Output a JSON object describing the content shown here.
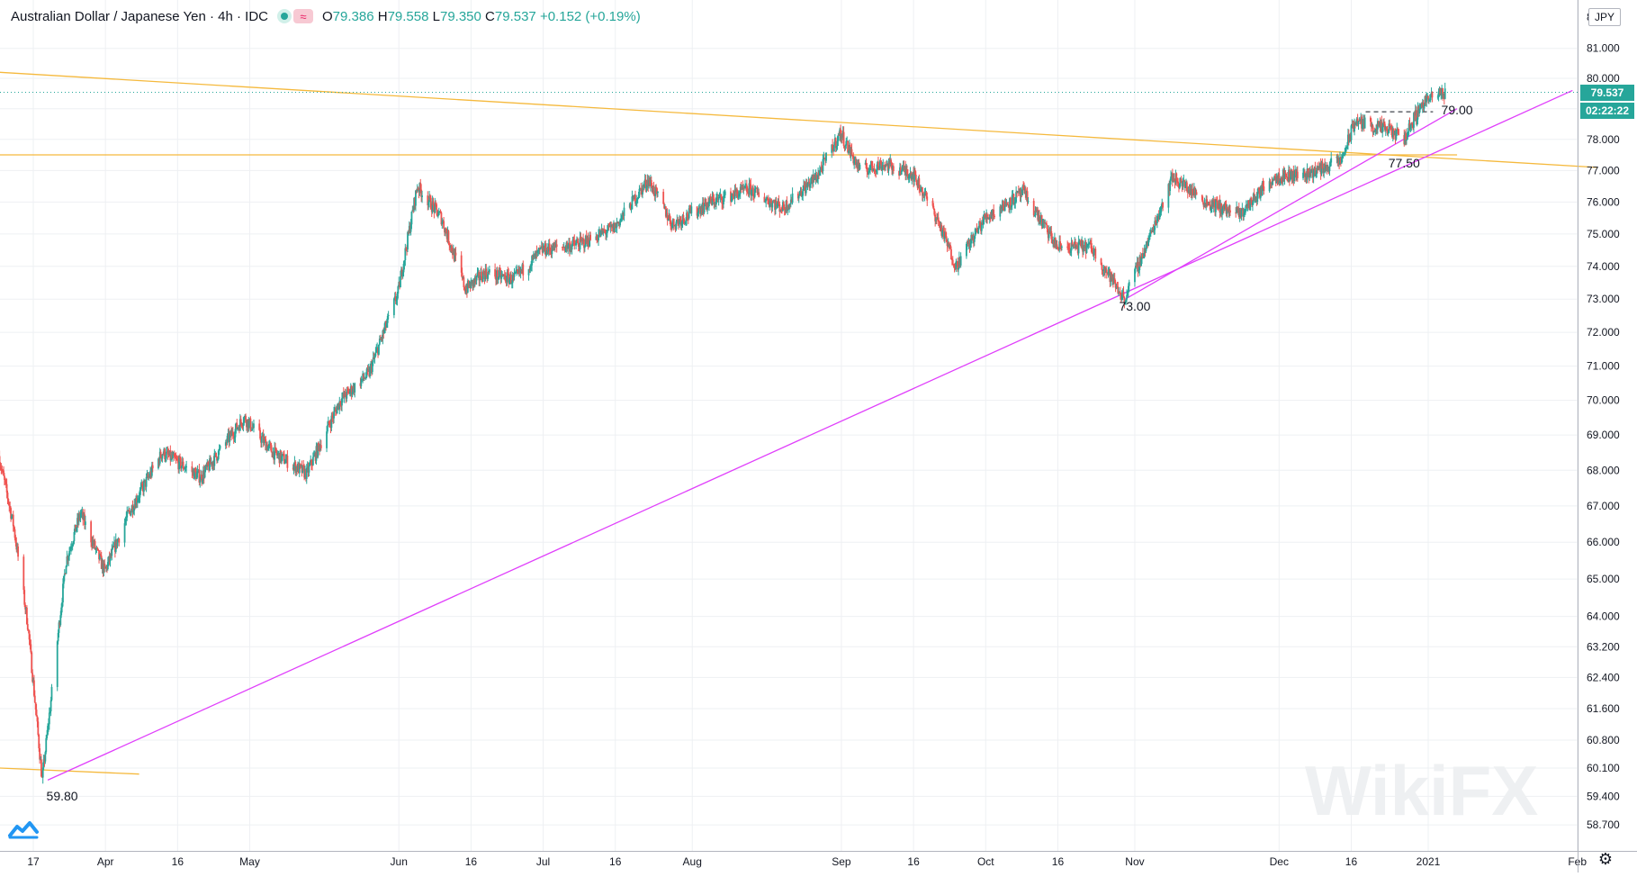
{
  "legend": {
    "symbol": "Australian Dollar / Japanese Yen · 4h · IDC",
    "approx": "≈",
    "open_label": "O",
    "open": "79.386",
    "high_label": "H",
    "high": "79.558",
    "low_label": "L",
    "low": "79.350",
    "close_label": "C",
    "close": "79.537",
    "change": "+0.152 (+0.19%)"
  },
  "currency": "JPY",
  "last_price_tag": "79.537",
  "countdown_tag": "02:22:22",
  "colors": {
    "up": "#26a69a",
    "down": "#ef5350",
    "support": "#e040fb",
    "resistance": "#f5b93d",
    "grid": "#eef0f3"
  },
  "chart_data": {
    "type": "candlestick",
    "symbol": "Australian Dollar / Japanese Yen",
    "timeframe": "4h",
    "y_axis": {
      "ticks": [
        "81.000",
        "80.000",
        "79.000",
        "78.000",
        "77.000",
        "76.000",
        "75.000",
        "74.000",
        "73.000",
        "72.000",
        "71.000",
        "70.000",
        "69.000",
        "68.000",
        "67.000",
        "66.000",
        "65.000",
        "64.000",
        "63.200",
        "62.400",
        "61.600",
        "60.800",
        "60.100",
        "59.400",
        "58.700"
      ],
      "tick_values": [
        81,
        80,
        79,
        78,
        77,
        76,
        75,
        74,
        73,
        72,
        71,
        70,
        69,
        68,
        67,
        66,
        65,
        64,
        63.2,
        62.4,
        61.6,
        60.8,
        60.1,
        59.4,
        58.7
      ],
      "top_partial": "8",
      "scale": "log"
    },
    "x_axis": {
      "labels": [
        "17",
        "Apr",
        "16",
        "May",
        "Jun",
        "16",
        "Jul",
        "16",
        "Aug",
        "Sep",
        "16",
        "Oct",
        "16",
        "Nov",
        "Dec",
        "16",
        "2021",
        "Feb"
      ],
      "dates": [
        "2020-03-17",
        "2020-04-01",
        "2020-04-16",
        "2020-05-01",
        "2020-06-01",
        "2020-06-16",
        "2020-07-01",
        "2020-07-16",
        "2020-08-01",
        "2020-09-01",
        "2020-09-16",
        "2020-10-01",
        "2020-10-16",
        "2020-11-01",
        "2020-12-01",
        "2020-12-16",
        "2021-01-01",
        "2021-02-01"
      ]
    },
    "price_path": [
      {
        "date": "2020-03-10",
        "price": 68.4
      },
      {
        "date": "2020-03-13",
        "price": 66.5
      },
      {
        "date": "2020-03-16",
        "price": 63.8
      },
      {
        "date": "2020-03-19",
        "price": 59.8
      },
      {
        "date": "2020-03-21",
        "price": 62.0
      },
      {
        "date": "2020-03-24",
        "price": 65.5
      },
      {
        "date": "2020-03-27",
        "price": 66.8
      },
      {
        "date": "2020-04-01",
        "price": 65.2
      },
      {
        "date": "2020-04-06",
        "price": 66.8
      },
      {
        "date": "2020-04-13",
        "price": 68.5
      },
      {
        "date": "2020-04-21",
        "price": 67.8
      },
      {
        "date": "2020-04-30",
        "price": 69.5
      },
      {
        "date": "2020-05-06",
        "price": 68.5
      },
      {
        "date": "2020-05-13",
        "price": 67.9
      },
      {
        "date": "2020-05-20",
        "price": 70.0
      },
      {
        "date": "2020-05-26",
        "price": 70.8
      },
      {
        "date": "2020-06-01",
        "price": 73.2
      },
      {
        "date": "2020-06-05",
        "price": 76.5
      },
      {
        "date": "2020-06-10",
        "price": 75.5
      },
      {
        "date": "2020-06-15",
        "price": 73.3
      },
      {
        "date": "2020-06-19",
        "price": 73.8
      },
      {
        "date": "2020-06-25",
        "price": 73.6
      },
      {
        "date": "2020-07-01",
        "price": 74.5
      },
      {
        "date": "2020-07-09",
        "price": 74.7
      },
      {
        "date": "2020-07-16",
        "price": 75.2
      },
      {
        "date": "2020-07-23",
        "price": 76.7
      },
      {
        "date": "2020-07-28",
        "price": 75.3
      },
      {
        "date": "2020-08-05",
        "price": 76.0
      },
      {
        "date": "2020-08-13",
        "price": 76.4
      },
      {
        "date": "2020-08-20",
        "price": 75.8
      },
      {
        "date": "2020-08-27",
        "price": 76.8
      },
      {
        "date": "2020-09-01",
        "price": 78.2
      },
      {
        "date": "2020-09-05",
        "price": 77.0
      },
      {
        "date": "2020-09-10",
        "price": 77.2
      },
      {
        "date": "2020-09-16",
        "price": 76.9
      },
      {
        "date": "2020-09-21",
        "price": 75.5
      },
      {
        "date": "2020-09-25",
        "price": 74.0
      },
      {
        "date": "2020-10-01",
        "price": 75.5
      },
      {
        "date": "2020-10-09",
        "price": 76.3
      },
      {
        "date": "2020-10-16",
        "price": 74.6
      },
      {
        "date": "2020-10-23",
        "price": 74.6
      },
      {
        "date": "2020-10-30",
        "price": 73.0
      },
      {
        "date": "2020-11-04",
        "price": 74.8
      },
      {
        "date": "2020-11-09",
        "price": 76.8
      },
      {
        "date": "2020-11-16",
        "price": 76.0
      },
      {
        "date": "2020-11-23",
        "price": 75.6
      },
      {
        "date": "2020-11-30",
        "price": 76.8
      },
      {
        "date": "2020-12-07",
        "price": 76.9
      },
      {
        "date": "2020-12-14",
        "price": 77.3
      },
      {
        "date": "2020-12-17",
        "price": 78.6
      },
      {
        "date": "2020-12-21",
        "price": 78.4
      },
      {
        "date": "2020-12-24",
        "price": 78.3
      },
      {
        "date": "2020-12-27",
        "price": 78.0
      },
      {
        "date": "2020-12-31",
        "price": 79.2
      },
      {
        "date": "2021-01-04",
        "price": 79.5
      }
    ],
    "trendlines": [
      {
        "kind": "resistance",
        "color": "#f5b93d",
        "from": {
          "date": "2020-03-10",
          "price": 80.2
        },
        "to": {
          "date": "2021-02-05",
          "price": 77.1
        }
      },
      {
        "kind": "resistance",
        "color": "#f5b93d",
        "from": {
          "date": "2020-03-10",
          "price": 77.5
        },
        "to": {
          "date": "2021-01-07",
          "price": 77.5
        }
      },
      {
        "kind": "resistance",
        "color": "#f5b93d",
        "from": {
          "date": "2020-03-10",
          "price": 60.1
        },
        "to": {
          "date": "2020-04-08",
          "price": 59.95
        }
      },
      {
        "kind": "support",
        "color": "#e040fb",
        "from": {
          "date": "2020-03-20",
          "price": 59.8
        },
        "to": {
          "date": "2021-01-31",
          "price": 79.6
        }
      },
      {
        "kind": "support",
        "color": "#e040fb",
        "from": {
          "date": "2020-10-30",
          "price": 73.0
        },
        "to": {
          "date": "2021-01-07",
          "price": 79.0
        }
      },
      {
        "kind": "level",
        "style": "dashed",
        "color": "#131722",
        "from": {
          "date": "2020-12-19",
          "price": 78.9
        },
        "to": {
          "date": "2021-01-02",
          "price": 78.9
        }
      }
    ],
    "annotations": [
      {
        "text": "59.80",
        "date": "2020-03-23",
        "price": 59.3
      },
      {
        "text": "73.00",
        "date": "2020-11-01",
        "price": 72.65
      },
      {
        "text": "77.50",
        "date": "2020-12-27",
        "price": 77.1
      },
      {
        "text": "79.00",
        "date": "2021-01-07",
        "price": 78.82
      }
    ],
    "last_price": 79.537
  },
  "watermark": "WikiFX"
}
